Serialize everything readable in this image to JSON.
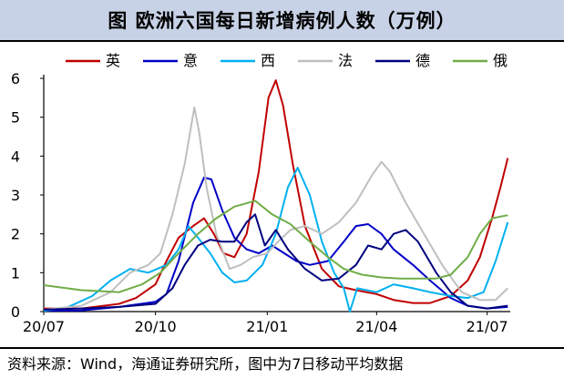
{
  "chart_data": {
    "type": "line",
    "title": "图  欧洲六国每日新增病例人数（万例）",
    "source": "资料来源：Wind，海通证券研究所，图中为7日移动平均数据",
    "x_ticks": [
      "20/07",
      "20/10",
      "21/01",
      "21/04",
      "21/07"
    ],
    "x_tick_values": [
      "2020-07-01",
      "2020-10-01",
      "2021-01-01",
      "2021-04-01",
      "2021-07-01"
    ],
    "x_range": [
      "2020-07-01",
      "2021-07-20"
    ],
    "ylim": [
      0,
      6
    ],
    "y_ticks": [
      0,
      1,
      2,
      3,
      4,
      5,
      6
    ],
    "legend_position": "top",
    "series": [
      {
        "name": "英",
        "color": "#c00000",
        "points": [
          [
            "2020-07-01",
            0.08
          ],
          [
            "2020-08-01",
            0.08
          ],
          [
            "2020-09-01",
            0.2
          ],
          [
            "2020-09-15",
            0.35
          ],
          [
            "2020-10-01",
            0.7
          ],
          [
            "2020-10-10",
            1.3
          ],
          [
            "2020-10-20",
            1.9
          ],
          [
            "2020-11-01",
            2.2
          ],
          [
            "2020-11-10",
            2.4
          ],
          [
            "2020-11-18",
            2.0
          ],
          [
            "2020-11-26",
            1.5
          ],
          [
            "2020-12-05",
            1.4
          ],
          [
            "2020-12-15",
            2.0
          ],
          [
            "2020-12-25",
            3.6
          ],
          [
            "2021-01-02",
            5.5
          ],
          [
            "2021-01-08",
            5.95
          ],
          [
            "2021-01-14",
            5.3
          ],
          [
            "2021-01-22",
            3.8
          ],
          [
            "2021-02-01",
            2.2
          ],
          [
            "2021-02-15",
            1.1
          ],
          [
            "2021-03-01",
            0.65
          ],
          [
            "2021-03-15",
            0.55
          ],
          [
            "2021-04-01",
            0.45
          ],
          [
            "2021-04-15",
            0.3
          ],
          [
            "2021-05-01",
            0.22
          ],
          [
            "2021-05-15",
            0.22
          ],
          [
            "2021-06-01",
            0.4
          ],
          [
            "2021-06-15",
            0.8
          ],
          [
            "2021-06-25",
            1.4
          ],
          [
            "2021-07-05",
            2.4
          ],
          [
            "2021-07-12",
            3.2
          ],
          [
            "2021-07-18",
            3.95
          ]
        ]
      },
      {
        "name": "意",
        "color": "#0000c8",
        "points": [
          [
            "2020-07-01",
            0.02
          ],
          [
            "2020-08-01",
            0.03
          ],
          [
            "2020-09-01",
            0.12
          ],
          [
            "2020-10-01",
            0.25
          ],
          [
            "2020-10-10",
            0.45
          ],
          [
            "2020-10-20",
            1.3
          ],
          [
            "2020-11-01",
            2.8
          ],
          [
            "2020-11-10",
            3.45
          ],
          [
            "2020-11-16",
            3.4
          ],
          [
            "2020-11-25",
            2.6
          ],
          [
            "2020-12-05",
            1.9
          ],
          [
            "2020-12-15",
            1.6
          ],
          [
            "2020-12-25",
            1.5
          ],
          [
            "2021-01-05",
            1.7
          ],
          [
            "2021-01-15",
            1.5
          ],
          [
            "2021-01-25",
            1.3
          ],
          [
            "2021-02-05",
            1.2
          ],
          [
            "2021-02-20",
            1.3
          ],
          [
            "2021-03-05",
            1.8
          ],
          [
            "2021-03-15",
            2.2
          ],
          [
            "2021-03-25",
            2.25
          ],
          [
            "2021-04-05",
            2.0
          ],
          [
            "2021-04-15",
            1.6
          ],
          [
            "2021-05-01",
            1.2
          ],
          [
            "2021-05-15",
            0.8
          ],
          [
            "2021-06-01",
            0.35
          ],
          [
            "2021-06-15",
            0.15
          ],
          [
            "2021-07-01",
            0.08
          ],
          [
            "2021-07-18",
            0.12
          ]
        ]
      },
      {
        "name": "西",
        "color": "#00b0f0",
        "points": [
          [
            "2020-07-01",
            0.02
          ],
          [
            "2020-07-20",
            0.1
          ],
          [
            "2020-08-10",
            0.4
          ],
          [
            "2020-08-25",
            0.8
          ],
          [
            "2020-09-10",
            1.1
          ],
          [
            "2020-09-25",
            1.0
          ],
          [
            "2020-10-10",
            1.2
          ],
          [
            "2020-10-20",
            1.6
          ],
          [
            "2020-10-28",
            2.2
          ],
          [
            "2020-11-05",
            1.9
          ],
          [
            "2020-11-15",
            1.5
          ],
          [
            "2020-11-25",
            1.0
          ],
          [
            "2020-12-05",
            0.75
          ],
          [
            "2020-12-15",
            0.8
          ],
          [
            "2020-12-28",
            1.2
          ],
          [
            "2021-01-08",
            2.0
          ],
          [
            "2021-01-18",
            3.2
          ],
          [
            "2021-01-26",
            3.7
          ],
          [
            "2021-02-05",
            3.0
          ],
          [
            "2021-02-15",
            1.8
          ],
          [
            "2021-02-25",
            1.0
          ],
          [
            "2021-03-05",
            0.6
          ],
          [
            "2021-03-10",
            0.0
          ],
          [
            "2021-03-16",
            0.6
          ],
          [
            "2021-04-01",
            0.5
          ],
          [
            "2021-04-15",
            0.7
          ],
          [
            "2021-05-01",
            0.6
          ],
          [
            "2021-05-15",
            0.5
          ],
          [
            "2021-06-01",
            0.4
          ],
          [
            "2021-06-15",
            0.35
          ],
          [
            "2021-06-28",
            0.5
          ],
          [
            "2021-07-08",
            1.3
          ],
          [
            "2021-07-18",
            2.3
          ]
        ]
      },
      {
        "name": "法",
        "color": "#bfbfbf",
        "points": [
          [
            "2020-07-01",
            0.05
          ],
          [
            "2020-08-01",
            0.15
          ],
          [
            "2020-08-25",
            0.5
          ],
          [
            "2020-09-10",
            1.0
          ],
          [
            "2020-09-25",
            1.2
          ],
          [
            "2020-10-05",
            1.5
          ],
          [
            "2020-10-15",
            2.5
          ],
          [
            "2020-10-25",
            3.8
          ],
          [
            "2020-11-02",
            5.25
          ],
          [
            "2020-11-06",
            4.6
          ],
          [
            "2020-11-12",
            3.2
          ],
          [
            "2020-11-20",
            2.0
          ],
          [
            "2020-12-01",
            1.1
          ],
          [
            "2020-12-10",
            1.2
          ],
          [
            "2020-12-20",
            1.4
          ],
          [
            "2021-01-01",
            1.5
          ],
          [
            "2021-01-10",
            1.8
          ],
          [
            "2021-01-20",
            2.1
          ],
          [
            "2021-02-01",
            2.2
          ],
          [
            "2021-02-15",
            2.0
          ],
          [
            "2021-03-01",
            2.3
          ],
          [
            "2021-03-15",
            2.8
          ],
          [
            "2021-03-28",
            3.5
          ],
          [
            "2021-04-05",
            3.85
          ],
          [
            "2021-04-12",
            3.6
          ],
          [
            "2021-04-25",
            2.8
          ],
          [
            "2021-05-10",
            2.0
          ],
          [
            "2021-05-25",
            1.2
          ],
          [
            "2021-06-10",
            0.5
          ],
          [
            "2021-06-25",
            0.3
          ],
          [
            "2021-07-08",
            0.3
          ],
          [
            "2021-07-18",
            0.6
          ]
        ]
      },
      {
        "name": "德",
        "color": "#00007f",
        "points": [
          [
            "2020-07-01",
            0.05
          ],
          [
            "2020-08-01",
            0.08
          ],
          [
            "2020-09-01",
            0.12
          ],
          [
            "2020-10-01",
            0.2
          ],
          [
            "2020-10-15",
            0.6
          ],
          [
            "2020-10-25",
            1.2
          ],
          [
            "2020-11-05",
            1.7
          ],
          [
            "2020-11-15",
            1.85
          ],
          [
            "2020-11-25",
            1.8
          ],
          [
            "2020-12-05",
            1.8
          ],
          [
            "2020-12-15",
            2.3
          ],
          [
            "2020-12-22",
            2.5
          ],
          [
            "2020-12-30",
            1.7
          ],
          [
            "2021-01-08",
            2.1
          ],
          [
            "2021-01-18",
            1.6
          ],
          [
            "2021-02-01",
            1.1
          ],
          [
            "2021-02-15",
            0.8
          ],
          [
            "2021-03-01",
            0.85
          ],
          [
            "2021-03-15",
            1.2
          ],
          [
            "2021-03-25",
            1.7
          ],
          [
            "2021-04-05",
            1.6
          ],
          [
            "2021-04-15",
            2.0
          ],
          [
            "2021-04-25",
            2.1
          ],
          [
            "2021-05-05",
            1.8
          ],
          [
            "2021-05-20",
            1.0
          ],
          [
            "2021-06-01",
            0.5
          ],
          [
            "2021-06-15",
            0.15
          ],
          [
            "2021-07-01",
            0.08
          ],
          [
            "2021-07-18",
            0.15
          ]
        ]
      },
      {
        "name": "俄",
        "color": "#70ad47",
        "points": [
          [
            "2020-07-01",
            0.68
          ],
          [
            "2020-08-01",
            0.55
          ],
          [
            "2020-09-01",
            0.5
          ],
          [
            "2020-09-20",
            0.7
          ],
          [
            "2020-10-05",
            1.0
          ],
          [
            "2020-10-20",
            1.5
          ],
          [
            "2020-11-05",
            2.0
          ],
          [
            "2020-11-20",
            2.4
          ],
          [
            "2020-12-05",
            2.7
          ],
          [
            "2020-12-22",
            2.85
          ],
          [
            "2021-01-05",
            2.5
          ],
          [
            "2021-01-20",
            2.25
          ],
          [
            "2021-02-05",
            1.8
          ],
          [
            "2021-02-20",
            1.4
          ],
          [
            "2021-03-05",
            1.1
          ],
          [
            "2021-03-20",
            0.95
          ],
          [
            "2021-04-05",
            0.88
          ],
          [
            "2021-04-20",
            0.85
          ],
          [
            "2021-05-05",
            0.85
          ],
          [
            "2021-05-20",
            0.85
          ],
          [
            "2021-06-01",
            0.95
          ],
          [
            "2021-06-15",
            1.4
          ],
          [
            "2021-06-25",
            2.0
          ],
          [
            "2021-07-05",
            2.4
          ],
          [
            "2021-07-18",
            2.48
          ]
        ]
      }
    ]
  }
}
